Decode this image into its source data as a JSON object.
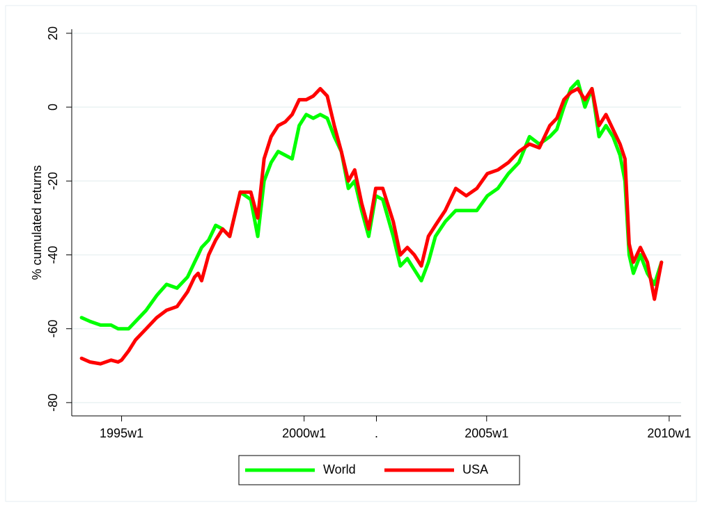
{
  "chart_data": {
    "type": "line",
    "y_label": "% cumulated returns",
    "x": [
      1763,
      1775,
      1790,
      1805,
      1815,
      1820,
      1830,
      1840,
      1855,
      1870,
      1884,
      1899,
      1914,
      1924,
      1929,
      1934,
      1944,
      1954,
      1964,
      1974,
      1989,
      2004,
      2014,
      2023,
      2033,
      2043,
      2053,
      2063,
      2073,
      2083,
      2093,
      2103,
      2113,
      2123,
      2133,
      2143,
      2152,
      2162,
      2172,
      2182,
      2192,
      2207,
      2217,
      2227,
      2237,
      2247,
      2257,
      2267,
      2281,
      2296,
      2311,
      2326,
      2341,
      2356,
      2371,
      2386,
      2401,
      2415,
      2430,
      2440,
      2450,
      2460,
      2470,
      2480,
      2490,
      2500,
      2510,
      2520,
      2530,
      2537,
      2543,
      2549,
      2559,
      2569,
      2579,
      2589
    ],
    "series": [
      {
        "name": "World",
        "color": "#00ff00",
        "values": [
          -57,
          -58,
          -59,
          -59,
          -60,
          -60,
          -60,
          -58,
          -55,
          -51,
          -48,
          -49,
          -46,
          -42,
          -40,
          -38,
          -36,
          -32,
          -33,
          -35,
          -23,
          -25,
          -35,
          -20,
          -15,
          -12,
          -13,
          -14,
          -5,
          -2,
          -3,
          -2,
          -3,
          -8,
          -12,
          -22,
          -20,
          -28,
          -35,
          -24,
          -25,
          -35,
          -43,
          -41,
          -44,
          -47,
          -42,
          -35,
          -31,
          -28,
          -28,
          -28,
          -24,
          -22,
          -18,
          -15,
          -8,
          -10,
          -8,
          -6,
          0,
          5,
          7,
          0,
          5,
          -8,
          -5,
          -8,
          -13,
          -20,
          -40,
          -45,
          -40,
          -45,
          -48,
          -42
        ]
      },
      {
        "name": "USA",
        "color": "#ff0000",
        "values": [
          -68,
          -69,
          -69.5,
          -68.5,
          -69,
          -68.5,
          -66,
          -63,
          -60,
          -57,
          -55,
          -54,
          -50,
          -46,
          -45,
          -47,
          -40,
          -36,
          -33,
          -35,
          -23,
          -23,
          -30,
          -14,
          -8,
          -5,
          -4,
          -2,
          2,
          2,
          3,
          5,
          3,
          -5,
          -12,
          -20,
          -17,
          -26,
          -33,
          -22,
          -22,
          -31,
          -40,
          -38,
          -40,
          -43,
          -35,
          -32,
          -28,
          -22,
          -24,
          -22,
          -18,
          -17,
          -15,
          -12,
          -10,
          -11,
          -5,
          -3,
          2,
          4,
          5,
          2,
          5,
          -5,
          -2,
          -6,
          -10,
          -14,
          -37,
          -42,
          -38,
          -42,
          -52,
          -42
        ]
      }
    ],
    "xlim": [
      1749,
      2617
    ],
    "xticks": [
      {
        "value": 1820,
        "label": "1995w1"
      },
      {
        "value": 2080,
        "label": "2000w1"
      },
      {
        "value": 2183,
        "label": "."
      },
      {
        "value": 2340,
        "label": "2005w1"
      },
      {
        "value": 2600,
        "label": "2010w1"
      }
    ],
    "ylim": [
      -83.6,
      21.1
    ],
    "yticks": [
      20,
      0,
      -20,
      -40,
      -60,
      -80
    ],
    "grid": true,
    "legend": "bottom"
  }
}
